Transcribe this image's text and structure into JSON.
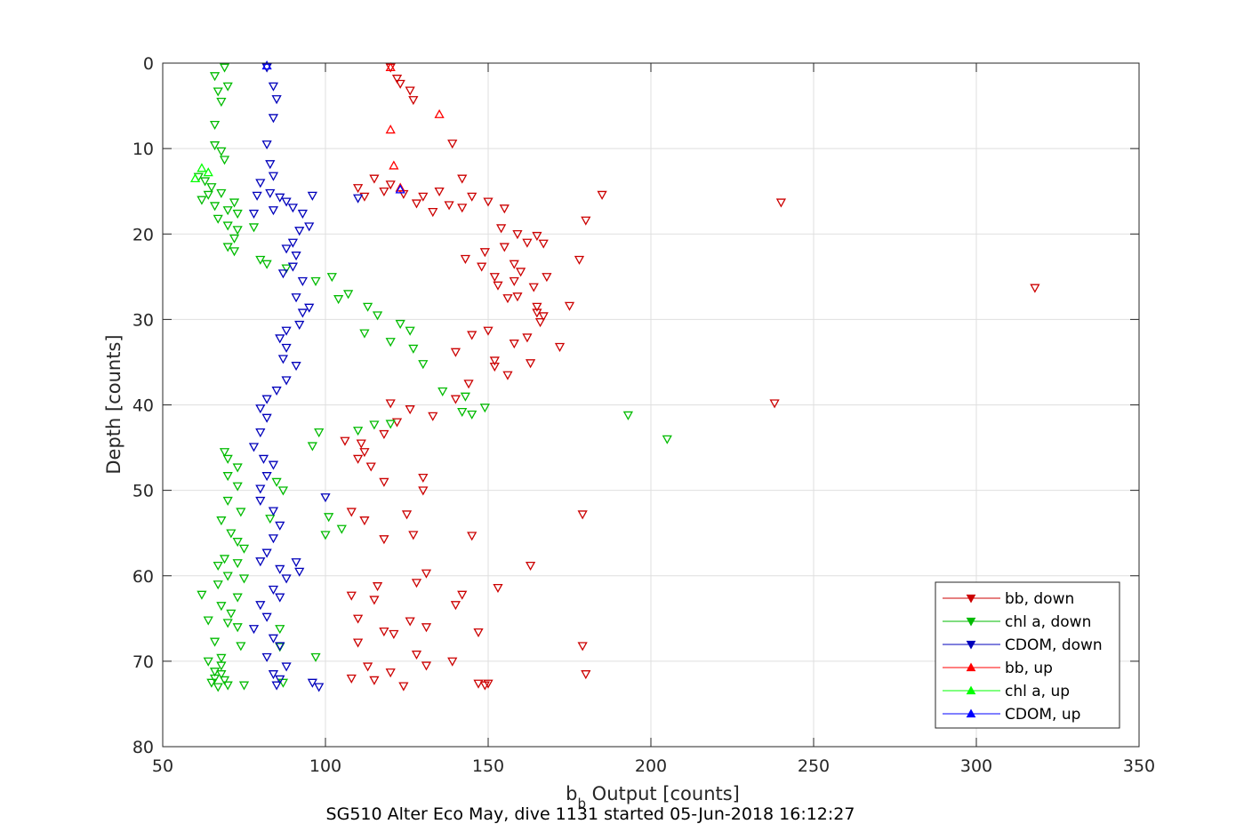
{
  "chart_data": {
    "type": "scatter",
    "xlabel_main": "b",
    "xlabel_sub": "b",
    "xlabel_rest": " Output [counts]",
    "ylabel": "Depth [counts]",
    "caption": "SG510 Alter Eco May, dive 1131 started 05-Jun-2018 16:12:27",
    "xlim": [
      50,
      350
    ],
    "ylim": [
      0,
      80
    ],
    "y_reversed": true,
    "xticks": [
      50,
      100,
      150,
      200,
      250,
      300,
      350
    ],
    "yticks": [
      0,
      10,
      20,
      30,
      40,
      50,
      60,
      70,
      80
    ],
    "grid": true,
    "legend_position": "bottom-right",
    "series": [
      {
        "name": "bb, down",
        "color": "#cc0000",
        "marker": "triangle-down",
        "points": [
          [
            120,
            0.5
          ],
          [
            122,
            1.8
          ],
          [
            123,
            2.4
          ],
          [
            126,
            3.2
          ],
          [
            127,
            4.3
          ],
          [
            139,
            9.4
          ],
          [
            142,
            13.5
          ],
          [
            115,
            13.5
          ],
          [
            120,
            14.2
          ],
          [
            110,
            14.6
          ],
          [
            118,
            15
          ],
          [
            124,
            15.3
          ],
          [
            130,
            15.6
          ],
          [
            135,
            15
          ],
          [
            145,
            15.6
          ],
          [
            150,
            16.2
          ],
          [
            185,
            15.4
          ],
          [
            240,
            16.3
          ],
          [
            112,
            15.6
          ],
          [
            128,
            16.4
          ],
          [
            138,
            16.6
          ],
          [
            142,
            16.9
          ],
          [
            155,
            17
          ],
          [
            133,
            17.4
          ],
          [
            180,
            18.4
          ],
          [
            154,
            19.3
          ],
          [
            159,
            20
          ],
          [
            165,
            20.2
          ],
          [
            162,
            21
          ],
          [
            167,
            21.1
          ],
          [
            155,
            21.5
          ],
          [
            149,
            22.1
          ],
          [
            178,
            23
          ],
          [
            143,
            22.9
          ],
          [
            148,
            23.8
          ],
          [
            158,
            23.5
          ],
          [
            160,
            24.4
          ],
          [
            152,
            25
          ],
          [
            168,
            25
          ],
          [
            158,
            25.5
          ],
          [
            153,
            26
          ],
          [
            164,
            26.2
          ],
          [
            318,
            26.3
          ],
          [
            159,
            27.3
          ],
          [
            156,
            27.5
          ],
          [
            175,
            28.4
          ],
          [
            165,
            28.5
          ],
          [
            165,
            29.2
          ],
          [
            167,
            29.6
          ],
          [
            166,
            30.3
          ],
          [
            150,
            31.3
          ],
          [
            145,
            31.8
          ],
          [
            162,
            32.1
          ],
          [
            158,
            32.8
          ],
          [
            172,
            33.2
          ],
          [
            140,
            33.8
          ],
          [
            152,
            34.8
          ],
          [
            163,
            35.1
          ],
          [
            152,
            35.5
          ],
          [
            156,
            36.5
          ],
          [
            144,
            37.5
          ],
          [
            140,
            39.3
          ],
          [
            238,
            39.8
          ],
          [
            120,
            39.8
          ],
          [
            126,
            40.5
          ],
          [
            133,
            41.3
          ],
          [
            122,
            42
          ],
          [
            118,
            43.4
          ],
          [
            106,
            44.2
          ],
          [
            111,
            44.5
          ],
          [
            112,
            45.5
          ],
          [
            110,
            46.3
          ],
          [
            114,
            47.2
          ],
          [
            130,
            48.5
          ],
          [
            118,
            49
          ],
          [
            130,
            50
          ],
          [
            108,
            52.5
          ],
          [
            125,
            52.8
          ],
          [
            179,
            52.8
          ],
          [
            112,
            53.5
          ],
          [
            118,
            55.7
          ],
          [
            127,
            55.2
          ],
          [
            145,
            55.3
          ],
          [
            163,
            58.8
          ],
          [
            131,
            59.7
          ],
          [
            128,
            60.8
          ],
          [
            116,
            61.2
          ],
          [
            142,
            62.2
          ],
          [
            153,
            61.4
          ],
          [
            108,
            62.3
          ],
          [
            115,
            62.8
          ],
          [
            140,
            63.4
          ],
          [
            110,
            65
          ],
          [
            126,
            65.3
          ],
          [
            131,
            66
          ],
          [
            118,
            66.5
          ],
          [
            121,
            66.8
          ],
          [
            147,
            66.6
          ],
          [
            110,
            67.8
          ],
          [
            179,
            68.2
          ],
          [
            128,
            69.2
          ],
          [
            139,
            70
          ],
          [
            131,
            70.5
          ],
          [
            113,
            70.6
          ],
          [
            120,
            71.3
          ],
          [
            108,
            72
          ],
          [
            180,
            71.5
          ],
          [
            115,
            72.2
          ],
          [
            150,
            72.6
          ],
          [
            147,
            72.6
          ],
          [
            149,
            72.8
          ],
          [
            124,
            72.9
          ]
        ]
      },
      {
        "name": "chl a, down",
        "color": "#00bb00",
        "marker": "triangle-down",
        "points": [
          [
            69,
            0.5
          ],
          [
            66,
            1.5
          ],
          [
            70,
            2.7
          ],
          [
            67,
            3.3
          ],
          [
            68,
            4.5
          ],
          [
            66,
            7.2
          ],
          [
            66,
            9.6
          ],
          [
            68,
            10.3
          ],
          [
            69,
            11.3
          ],
          [
            61,
            13.3
          ],
          [
            63,
            13.8
          ],
          [
            65,
            14.5
          ],
          [
            68,
            15.2
          ],
          [
            72,
            16.3
          ],
          [
            62,
            16
          ],
          [
            64,
            15.4
          ],
          [
            66,
            16.7
          ],
          [
            70,
            17.2
          ],
          [
            73,
            17.6
          ],
          [
            67,
            18.2
          ],
          [
            70,
            19
          ],
          [
            73,
            19.5
          ],
          [
            78,
            19.2
          ],
          [
            72,
            20.5
          ],
          [
            70,
            21.5
          ],
          [
            72,
            22
          ],
          [
            80,
            23
          ],
          [
            82,
            23.5
          ],
          [
            88,
            24
          ],
          [
            97,
            25.5
          ],
          [
            102,
            25
          ],
          [
            104,
            27.6
          ],
          [
            107,
            27
          ],
          [
            113,
            28.5
          ],
          [
            116,
            29.5
          ],
          [
            123,
            30.5
          ],
          [
            126,
            31.3
          ],
          [
            112,
            31.6
          ],
          [
            120,
            32.6
          ],
          [
            127,
            33.4
          ],
          [
            130,
            35.2
          ],
          [
            136,
            38.4
          ],
          [
            143,
            39
          ],
          [
            142,
            40.8
          ],
          [
            149,
            40.3
          ],
          [
            145,
            41.1
          ],
          [
            193,
            41.2
          ],
          [
            205,
            44
          ],
          [
            120,
            42.2
          ],
          [
            115,
            42.3
          ],
          [
            110,
            43
          ],
          [
            98,
            43.2
          ],
          [
            96,
            44.8
          ],
          [
            69,
            45.5
          ],
          [
            70,
            46.3
          ],
          [
            73,
            47.3
          ],
          [
            70,
            48.3
          ],
          [
            73,
            49.5
          ],
          [
            70,
            51.2
          ],
          [
            74,
            52.5
          ],
          [
            68,
            53.5
          ],
          [
            71,
            55
          ],
          [
            73,
            56
          ],
          [
            75,
            56.8
          ],
          [
            69,
            58
          ],
          [
            73,
            58.5
          ],
          [
            67,
            58.8
          ],
          [
            70,
            60
          ],
          [
            75,
            60.3
          ],
          [
            67,
            61
          ],
          [
            62,
            62.2
          ],
          [
            73,
            62.5
          ],
          [
            68,
            63.5
          ],
          [
            71,
            64.4
          ],
          [
            64,
            65.2
          ],
          [
            70,
            65.5
          ],
          [
            73,
            66
          ],
          [
            66,
            67.7
          ],
          [
            74,
            68.2
          ],
          [
            68,
            69.6
          ],
          [
            64,
            70
          ],
          [
            68,
            70.5
          ],
          [
            66,
            71.2
          ],
          [
            68,
            71.5
          ],
          [
            66,
            72
          ],
          [
            69,
            72.2
          ],
          [
            65,
            72.5
          ],
          [
            67,
            73
          ],
          [
            70,
            72.8
          ],
          [
            75,
            72.8
          ],
          [
            87,
            72.5
          ],
          [
            97,
            69.5
          ],
          [
            86,
            68.3
          ],
          [
            86,
            66.2
          ],
          [
            83,
            53.3
          ],
          [
            87,
            50
          ],
          [
            85,
            49
          ],
          [
            101,
            53.1
          ],
          [
            105,
            54.5
          ],
          [
            100,
            55.2
          ]
        ]
      },
      {
        "name": "CDOM, down",
        "color": "#0000bb",
        "marker": "triangle-down",
        "points": [
          [
            82,
            0.5
          ],
          [
            84,
            2.7
          ],
          [
            85,
            4.2
          ],
          [
            84,
            6.4
          ],
          [
            82,
            9.5
          ],
          [
            83,
            11.8
          ],
          [
            84,
            13.2
          ],
          [
            80,
            14
          ],
          [
            79,
            15.5
          ],
          [
            83,
            15.2
          ],
          [
            86,
            15.7
          ],
          [
            88,
            16.2
          ],
          [
            90,
            16.9
          ],
          [
            84,
            17.2
          ],
          [
            78,
            17.6
          ],
          [
            96,
            15.5
          ],
          [
            93,
            17.6
          ],
          [
            95,
            19.1
          ],
          [
            92,
            19.6
          ],
          [
            90,
            21
          ],
          [
            88,
            21.7
          ],
          [
            91,
            22.5
          ],
          [
            90,
            23.8
          ],
          [
            87,
            24.6
          ],
          [
            93,
            25.5
          ],
          [
            91,
            27.4
          ],
          [
            95,
            28.6
          ],
          [
            93,
            29.2
          ],
          [
            92,
            30.6
          ],
          [
            88,
            31.3
          ],
          [
            86,
            32.2
          ],
          [
            88,
            33.3
          ],
          [
            87,
            34.6
          ],
          [
            91,
            35.4
          ],
          [
            88,
            37.1
          ],
          [
            85,
            38.3
          ],
          [
            82,
            39.3
          ],
          [
            80,
            40.4
          ],
          [
            82,
            41.5
          ],
          [
            80,
            43.2
          ],
          [
            78,
            44.9
          ],
          [
            81,
            46.3
          ],
          [
            84,
            47
          ],
          [
            82,
            48.3
          ],
          [
            80,
            49.8
          ],
          [
            80,
            51.2
          ],
          [
            84,
            52.4
          ],
          [
            86,
            54.1
          ],
          [
            84,
            55.6
          ],
          [
            82,
            57.3
          ],
          [
            80,
            58.3
          ],
          [
            86,
            59.2
          ],
          [
            88,
            60.3
          ],
          [
            84,
            61.6
          ],
          [
            86,
            62.5
          ],
          [
            80,
            63.4
          ],
          [
            82,
            64.8
          ],
          [
            78,
            66.2
          ],
          [
            84,
            67.3
          ],
          [
            86,
            68.2
          ],
          [
            82,
            69.5
          ],
          [
            88,
            70.6
          ],
          [
            84,
            71.5
          ],
          [
            86,
            72.1
          ],
          [
            85,
            72.8
          ],
          [
            96,
            72.5
          ],
          [
            98,
            73
          ],
          [
            91,
            58.4
          ],
          [
            92,
            59.5
          ],
          [
            100,
            50.8
          ],
          [
            110,
            15.8
          ]
        ]
      },
      {
        "name": "bb, up",
        "color": "#ff0000",
        "marker": "triangle-up",
        "points": [
          [
            120,
            0.5
          ],
          [
            135,
            6
          ],
          [
            120,
            7.8
          ],
          [
            121,
            12
          ],
          [
            123,
            14.6
          ]
        ]
      },
      {
        "name": "chl a, up",
        "color": "#00ff00",
        "marker": "triangle-up",
        "points": [
          [
            62,
            12.3
          ],
          [
            64,
            12.8
          ],
          [
            60,
            13.5
          ]
        ]
      },
      {
        "name": "CDOM, up",
        "color": "#0000ff",
        "marker": "triangle-up",
        "points": [
          [
            82,
            0.3
          ],
          [
            123,
            14.8
          ]
        ]
      }
    ]
  }
}
